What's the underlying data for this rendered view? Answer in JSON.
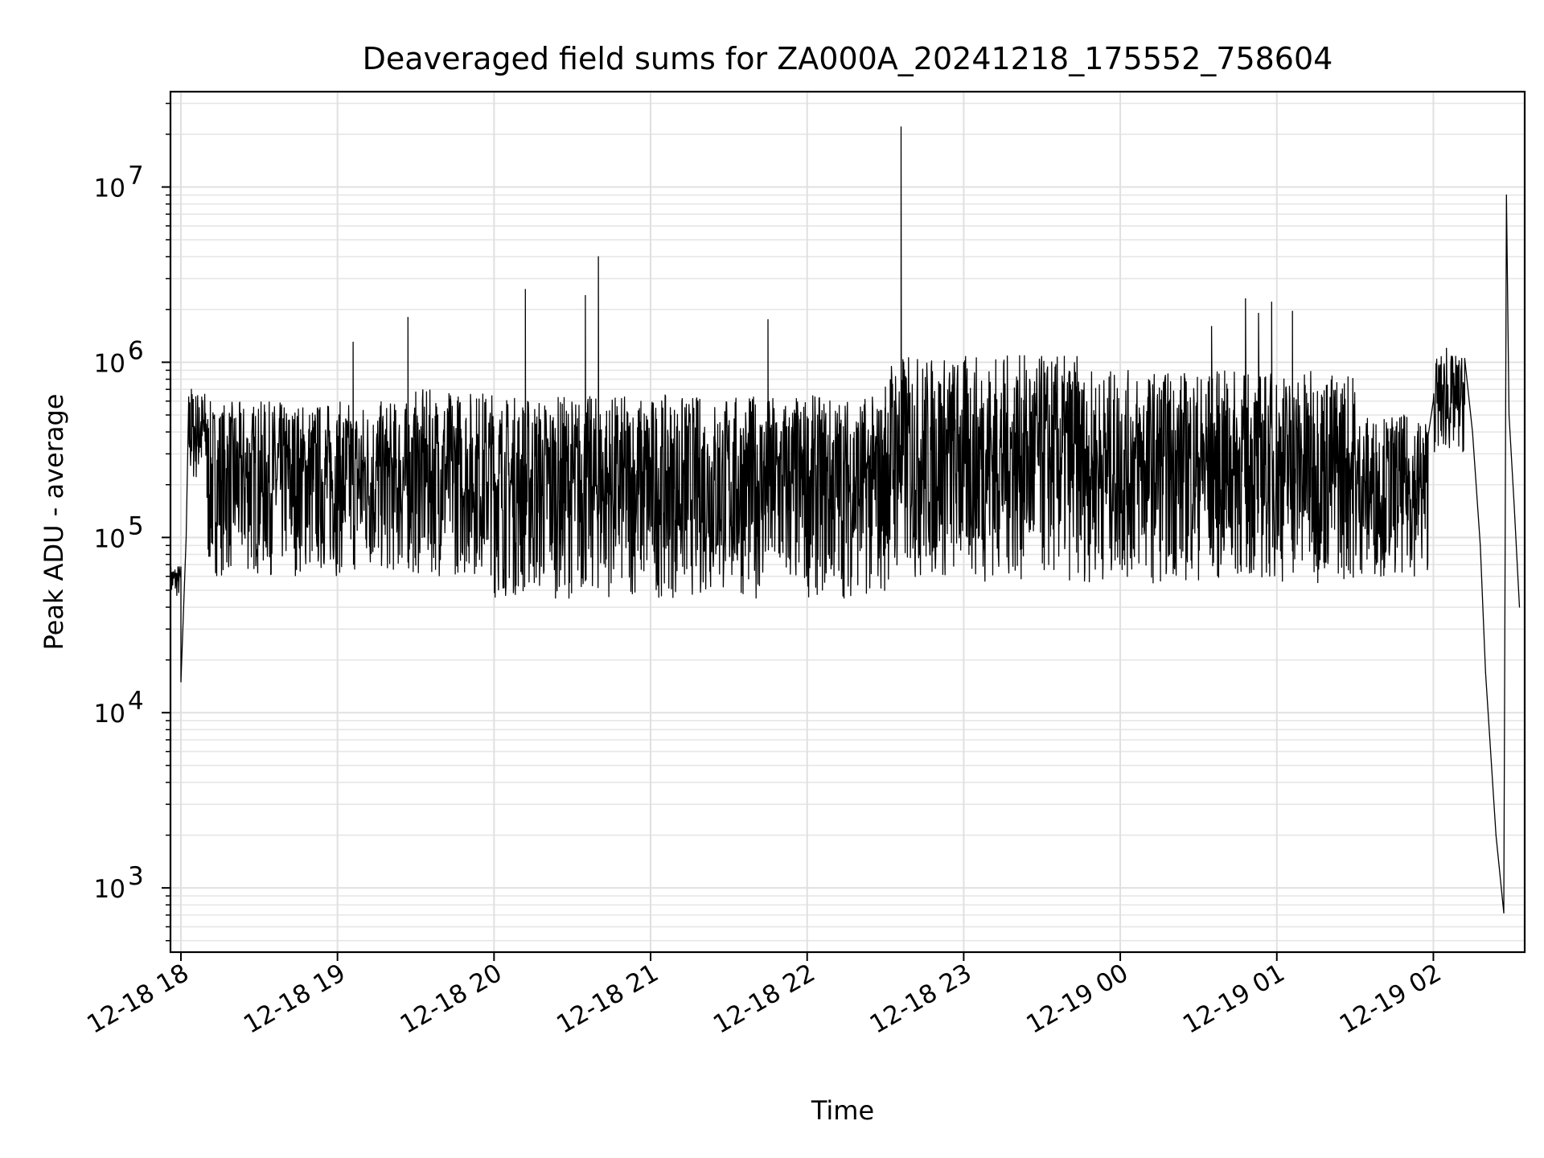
{
  "chart_data": {
    "type": "line",
    "title": "Deaveraged field sums for ZA000A_20241218_175552_758604",
    "xlabel": "Time",
    "ylabel": "Peak ADU - average",
    "yscale": "log",
    "ylim": [
      430,
      35000000
    ],
    "xlim": [
      "12-18 17:56",
      "12-19 02:35"
    ],
    "grid": true,
    "x_ticks": [
      {
        "label": "12-18 18",
        "time": "12-18 18:00"
      },
      {
        "label": "12-18 19",
        "time": "12-18 19:00"
      },
      {
        "label": "12-18 20",
        "time": "12-18 20:00"
      },
      {
        "label": "12-18 21",
        "time": "12-18 21:00"
      },
      {
        "label": "12-18 22",
        "time": "12-18 22:00"
      },
      {
        "label": "12-18 23",
        "time": "12-18 23:00"
      },
      {
        "label": "12-19 00",
        "time": "12-19 00:00"
      },
      {
        "label": "12-19 01",
        "time": "12-19 01:00"
      },
      {
        "label": "12-19 02",
        "time": "12-19 02:00"
      }
    ],
    "y_ticks": [
      {
        "label": "10",
        "exp": "3",
        "value": 1000
      },
      {
        "label": "10",
        "exp": "4",
        "value": 10000
      },
      {
        "label": "10",
        "exp": "5",
        "value": 100000
      },
      {
        "label": "10",
        "exp": "6",
        "value": 1000000
      },
      {
        "label": "10",
        "exp": "7",
        "value": 10000000
      }
    ],
    "series": [
      {
        "color": "#000000",
        "baseline_segments": [
          {
            "from": "12-18 17:56",
            "to": "12-18 18:00",
            "low": 45000,
            "high": 70000
          },
          {
            "from": "12-18 18:03",
            "to": "12-18 18:10",
            "low": 200000,
            "high": 700000
          },
          {
            "from": "12-18 18:10",
            "to": "12-18 19:30",
            "low": 60000,
            "high": 600000
          },
          {
            "from": "12-18 19:30",
            "to": "12-18 20:00",
            "low": 60000,
            "high": 700000
          },
          {
            "from": "12-18 20:00",
            "to": "12-18 22:30",
            "low": 45000,
            "high": 650000
          },
          {
            "from": "12-18 22:30",
            "to": "12-18 23:45",
            "low": 55000,
            "high": 1100000
          },
          {
            "from": "12-18 23:45",
            "to": "12-19 01:30",
            "low": 55000,
            "high": 900000
          },
          {
            "from": "12-19 01:30",
            "to": "12-19 01:58",
            "low": 60000,
            "high": 500000
          },
          {
            "from": "12-19 02:00",
            "to": "12-19 02:12",
            "low": 300000,
            "high": 1100000
          }
        ],
        "points": [
          {
            "x": "12-18 17:56",
            "y": 55000
          },
          {
            "x": "12-18 18:00",
            "y": 15000
          },
          {
            "x": "12-18 18:02",
            "y": 100000
          },
          {
            "x": "12-18 18:04",
            "y": 700000
          },
          {
            "x": "12-18 18:07",
            "y": 550000
          },
          {
            "x": "12-18 19:06",
            "y": 1300000
          },
          {
            "x": "12-18 19:27",
            "y": 1800000
          },
          {
            "x": "12-18 20:12",
            "y": 2600000
          },
          {
            "x": "12-18 20:35",
            "y": 2400000
          },
          {
            "x": "12-18 20:40",
            "y": 4000000
          },
          {
            "x": "12-18 21:45",
            "y": 1750000
          },
          {
            "x": "12-18 22:36",
            "y": 22000000
          },
          {
            "x": "12-18 22:37",
            "y": 1000000
          },
          {
            "x": "12-19 00:35",
            "y": 1600000
          },
          {
            "x": "12-19 00:48",
            "y": 2300000
          },
          {
            "x": "12-19 00:53",
            "y": 1900000
          },
          {
            "x": "12-19 00:58",
            "y": 2200000
          },
          {
            "x": "12-19 01:06",
            "y": 1950000
          },
          {
            "x": "12-19 02:05",
            "y": 1200000
          },
          {
            "x": "12-19 02:12",
            "y": 1050000
          },
          {
            "x": "12-19 02:15",
            "y": 400000
          },
          {
            "x": "12-19 02:18",
            "y": 90000
          },
          {
            "x": "12-19 02:20",
            "y": 17000
          },
          {
            "x": "12-19 02:24",
            "y": 2000
          },
          {
            "x": "12-19 02:27",
            "y": 720
          },
          {
            "x": "12-19 02:28",
            "y": 9000000
          },
          {
            "x": "12-19 02:29",
            "y": 500000
          },
          {
            "x": "12-19 02:31",
            "y": 150000
          },
          {
            "x": "12-19 02:33",
            "y": 40000
          }
        ]
      }
    ]
  }
}
